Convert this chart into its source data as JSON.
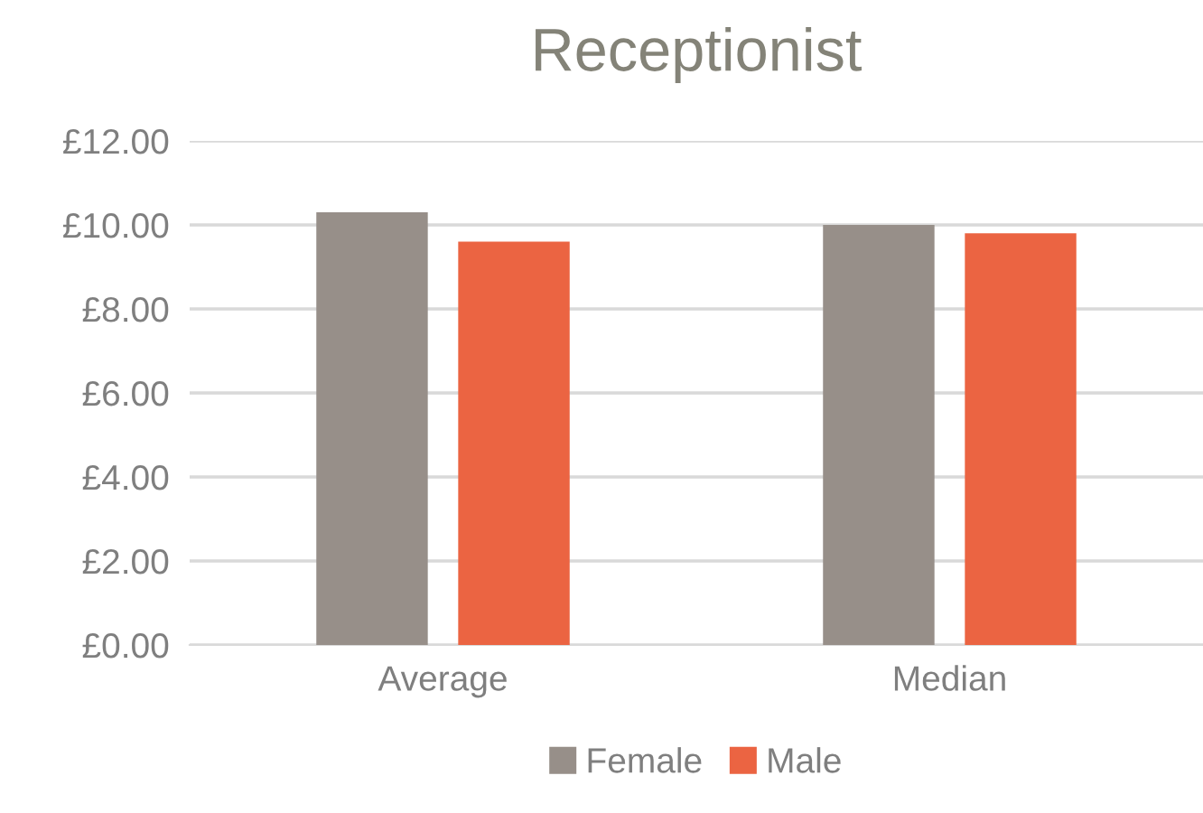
{
  "chart_data": {
    "type": "bar",
    "title": "Receptionist",
    "categories": [
      "Average",
      "Median"
    ],
    "series": [
      {
        "name": "Female",
        "color": "#978f89",
        "values": [
          10.3,
          10.0
        ]
      },
      {
        "name": "Male",
        "color": "#eb6442",
        "values": [
          9.6,
          9.8
        ]
      }
    ],
    "ylim": [
      0,
      12
    ],
    "yticks": [
      {
        "value": 0,
        "label": "£0.00"
      },
      {
        "value": 2,
        "label": "£2.00"
      },
      {
        "value": 4,
        "label": "£4.00"
      },
      {
        "value": 6,
        "label": "£6.00"
      },
      {
        "value": 8,
        "label": "£8.00"
      },
      {
        "value": 10,
        "label": "£10.00"
      },
      {
        "value": 12,
        "label": "£12.00"
      }
    ],
    "grid": "y",
    "legend": "bottom"
  }
}
